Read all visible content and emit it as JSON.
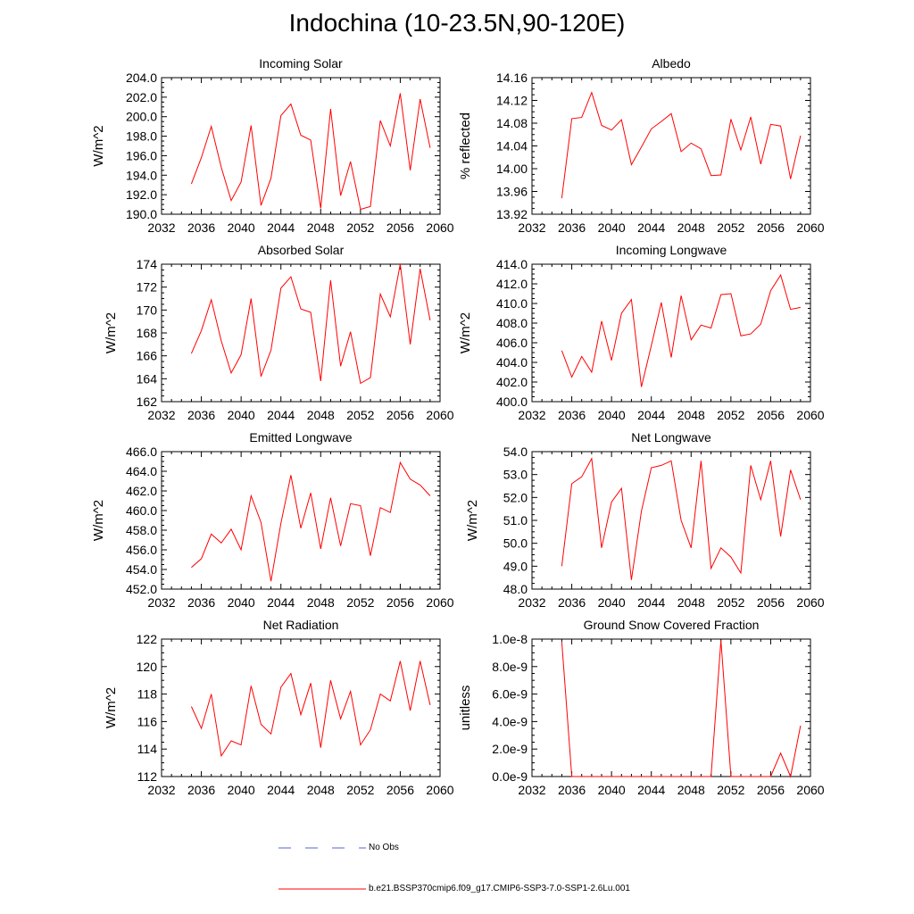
{
  "page": {
    "title": "Indochina (10-23.5N,90-120E)"
  },
  "legend": [
    {
      "label": "No Obs",
      "color": "#5566cc",
      "style": "dashed"
    },
    {
      "label": "b.e21.BSSP370cmip6.f09_g17.CMIP6-SSP3-7.0-SSP1-2.6Lu.001",
      "color": "#ff0000",
      "style": "solid"
    }
  ],
  "chart_data": [
    {
      "type": "line",
      "title": "Incoming Solar",
      "ylabel": "W/m^2",
      "xlim": [
        2032,
        2060
      ],
      "xticks": [
        "2032",
        "2036",
        "2040",
        "2044",
        "2048",
        "2052",
        "2056",
        "2060"
      ],
      "ylim": [
        190,
        204
      ],
      "yticks": [
        "190.0",
        "192.0",
        "194.0",
        "196.0",
        "198.0",
        "200.0",
        "202.0",
        "204.0"
      ],
      "x": [
        2035,
        2036,
        2037,
        2038,
        2039,
        2040,
        2041,
        2042,
        2043,
        2044,
        2045,
        2046,
        2047,
        2048,
        2049,
        2050,
        2051,
        2052,
        2053,
        2054,
        2055,
        2056,
        2057,
        2058,
        2059
      ],
      "series": [
        {
          "color": "#ff0000",
          "values": [
            193.1,
            195.8,
            199.0,
            194.8,
            191.4,
            193.3,
            199.1,
            190.9,
            193.7,
            200.1,
            201.3,
            198.1,
            197.6,
            190.6,
            200.8,
            191.9,
            195.4,
            190.5,
            190.8,
            199.6,
            197.0,
            202.4,
            194.5,
            201.8,
            196.8
          ]
        }
      ]
    },
    {
      "type": "line",
      "title": "Albedo",
      "ylabel": "% reflected",
      "xlim": [
        2032,
        2060
      ],
      "xticks": [
        "2032",
        "2036",
        "2040",
        "2044",
        "2048",
        "2052",
        "2056",
        "2060"
      ],
      "ylim": [
        13.92,
        14.16
      ],
      "yticks": [
        "13.92",
        "13.96",
        "14.00",
        "14.04",
        "14.08",
        "14.12",
        "14.16"
      ],
      "x": [
        2035,
        2036,
        2037,
        2038,
        2039,
        2040,
        2041,
        2042,
        2043,
        2044,
        2045,
        2046,
        2047,
        2048,
        2049,
        2050,
        2051,
        2052,
        2053,
        2054,
        2055,
        2056,
        2057,
        2058,
        2059
      ],
      "series": [
        {
          "color": "#ff0000",
          "values": [
            13.948,
            14.088,
            14.09,
            14.134,
            14.076,
            14.068,
            14.086,
            14.007,
            14.038,
            14.07,
            14.083,
            14.097,
            14.03,
            14.045,
            14.035,
            13.988,
            13.989,
            14.087,
            14.033,
            14.091,
            14.008,
            14.078,
            14.075,
            13.982,
            14.058
          ]
        }
      ]
    },
    {
      "type": "line",
      "title": "Absorbed Solar",
      "ylabel": "W/m^2",
      "xlim": [
        2032,
        2060
      ],
      "xticks": [
        "2032",
        "2036",
        "2040",
        "2044",
        "2048",
        "2052",
        "2056",
        "2060"
      ],
      "ylim": [
        162,
        174
      ],
      "yticks": [
        "162",
        "164",
        "166",
        "168",
        "170",
        "172",
        "174"
      ],
      "x": [
        2035,
        2036,
        2037,
        2038,
        2039,
        2040,
        2041,
        2042,
        2043,
        2044,
        2045,
        2046,
        2047,
        2048,
        2049,
        2050,
        2051,
        2052,
        2053,
        2054,
        2055,
        2056,
        2057,
        2058,
        2059
      ],
      "series": [
        {
          "color": "#ff0000",
          "values": [
            166.2,
            168.2,
            170.9,
            167.3,
            164.5,
            166.1,
            171.0,
            164.2,
            166.5,
            171.9,
            172.9,
            170.1,
            169.8,
            163.8,
            172.6,
            165.1,
            168.1,
            163.6,
            164.1,
            171.4,
            169.4,
            174.0,
            167.0,
            173.6,
            169.1
          ]
        }
      ]
    },
    {
      "type": "line",
      "title": "Incoming Longwave",
      "ylabel": "W/m^2",
      "xlim": [
        2032,
        2060
      ],
      "xticks": [
        "2032",
        "2036",
        "2040",
        "2044",
        "2048",
        "2052",
        "2056",
        "2060"
      ],
      "ylim": [
        400,
        414
      ],
      "yticks": [
        "400.0",
        "402.0",
        "404.0",
        "406.0",
        "408.0",
        "410.0",
        "412.0",
        "414.0"
      ],
      "x": [
        2035,
        2036,
        2037,
        2038,
        2039,
        2040,
        2041,
        2042,
        2043,
        2044,
        2045,
        2046,
        2047,
        2048,
        2049,
        2050,
        2051,
        2052,
        2053,
        2054,
        2055,
        2056,
        2057,
        2058,
        2059
      ],
      "series": [
        {
          "color": "#ff0000",
          "values": [
            405.2,
            402.5,
            404.6,
            403.0,
            408.2,
            404.2,
            409.0,
            410.4,
            401.5,
            405.7,
            410.1,
            404.5,
            410.8,
            406.3,
            407.8,
            407.5,
            410.9,
            411.0,
            406.7,
            406.9,
            407.9,
            411.3,
            412.9,
            409.4,
            409.6
          ]
        }
      ]
    },
    {
      "type": "line",
      "title": "Emitted Longwave",
      "ylabel": "W/m^2",
      "xlim": [
        2032,
        2060
      ],
      "xticks": [
        "2032",
        "2036",
        "2040",
        "2044",
        "2048",
        "2052",
        "2056",
        "2060"
      ],
      "ylim": [
        452,
        466
      ],
      "yticks": [
        "452.0",
        "454.0",
        "456.0",
        "458.0",
        "460.0",
        "462.0",
        "464.0",
        "466.0"
      ],
      "x": [
        2035,
        2036,
        2037,
        2038,
        2039,
        2040,
        2041,
        2042,
        2043,
        2044,
        2045,
        2046,
        2047,
        2048,
        2049,
        2050,
        2051,
        2052,
        2053,
        2054,
        2055,
        2056,
        2057,
        2058,
        2059
      ],
      "series": [
        {
          "color": "#ff0000",
          "values": [
            454.2,
            455.1,
            457.6,
            456.7,
            458.1,
            456.0,
            461.5,
            458.8,
            452.8,
            458.7,
            463.6,
            458.2,
            461.8,
            456.1,
            461.3,
            456.4,
            460.7,
            460.5,
            455.4,
            460.3,
            459.8,
            464.9,
            463.2,
            462.6,
            461.5
          ]
        }
      ]
    },
    {
      "type": "line",
      "title": "Net Longwave",
      "ylabel": "W/m^2",
      "xlim": [
        2032,
        2060
      ],
      "xticks": [
        "2032",
        "2036",
        "2040",
        "2044",
        "2048",
        "2052",
        "2056",
        "2060"
      ],
      "ylim": [
        48,
        54
      ],
      "yticks": [
        "48.0",
        "49.0",
        "50.0",
        "51.0",
        "52.0",
        "53.0",
        "54.0"
      ],
      "x": [
        2035,
        2036,
        2037,
        2038,
        2039,
        2040,
        2041,
        2042,
        2043,
        2044,
        2045,
        2046,
        2047,
        2048,
        2049,
        2050,
        2051,
        2052,
        2053,
        2054,
        2055,
        2056,
        2057,
        2058,
        2059
      ],
      "series": [
        {
          "color": "#ff0000",
          "values": [
            49.0,
            52.6,
            52.9,
            53.7,
            49.8,
            51.8,
            52.4,
            48.4,
            51.4,
            53.3,
            53.4,
            53.6,
            51.0,
            49.8,
            53.6,
            48.9,
            49.8,
            49.4,
            48.7,
            53.4,
            51.9,
            53.6,
            50.3,
            53.2,
            51.9
          ]
        }
      ]
    },
    {
      "type": "line",
      "title": "Net Radiation",
      "ylabel": "W/m^2",
      "xlim": [
        2032,
        2060
      ],
      "xticks": [
        "2032",
        "2036",
        "2040",
        "2044",
        "2048",
        "2052",
        "2056",
        "2060"
      ],
      "ylim": [
        112,
        122
      ],
      "yticks": [
        "112",
        "114",
        "116",
        "118",
        "120",
        "122"
      ],
      "x": [
        2035,
        2036,
        2037,
        2038,
        2039,
        2040,
        2041,
        2042,
        2043,
        2044,
        2045,
        2046,
        2047,
        2048,
        2049,
        2050,
        2051,
        2052,
        2053,
        2054,
        2055,
        2056,
        2057,
        2058,
        2059
      ],
      "series": [
        {
          "color": "#ff0000",
          "values": [
            117.1,
            115.5,
            118.0,
            113.5,
            114.6,
            114.3,
            118.6,
            115.8,
            115.1,
            118.5,
            119.5,
            116.5,
            118.8,
            114.1,
            119.0,
            116.2,
            118.2,
            114.3,
            115.4,
            118.0,
            117.5,
            120.4,
            116.8,
            120.4,
            117.2
          ]
        }
      ]
    },
    {
      "type": "line",
      "title": "Ground Snow Covered Fraction",
      "ylabel": "unitless",
      "xlim": [
        2032,
        2060
      ],
      "xticks": [
        "2032",
        "2036",
        "2040",
        "2044",
        "2048",
        "2052",
        "2056",
        "2060"
      ],
      "ylim": [
        0,
        1e-08
      ],
      "yticks": [
        "0.0e-9",
        "2.0e-9",
        "4.0e-9",
        "6.0e-9",
        "8.0e-9",
        "1.0e-8"
      ],
      "x": [
        2035,
        2036,
        2037,
        2038,
        2039,
        2040,
        2041,
        2042,
        2043,
        2044,
        2045,
        2046,
        2047,
        2048,
        2049,
        2050,
        2051,
        2052,
        2053,
        2054,
        2055,
        2056,
        2057,
        2058,
        2059
      ],
      "series": [
        {
          "color": "#ff0000",
          "values": [
            9.8e-09,
            0,
            0,
            0,
            0,
            0,
            0,
            0,
            0,
            0,
            0,
            0,
            0,
            0,
            0,
            0,
            9.9e-09,
            0,
            0,
            0,
            0,
            0,
            1.7e-09,
            0,
            3.7e-09
          ]
        }
      ]
    }
  ]
}
